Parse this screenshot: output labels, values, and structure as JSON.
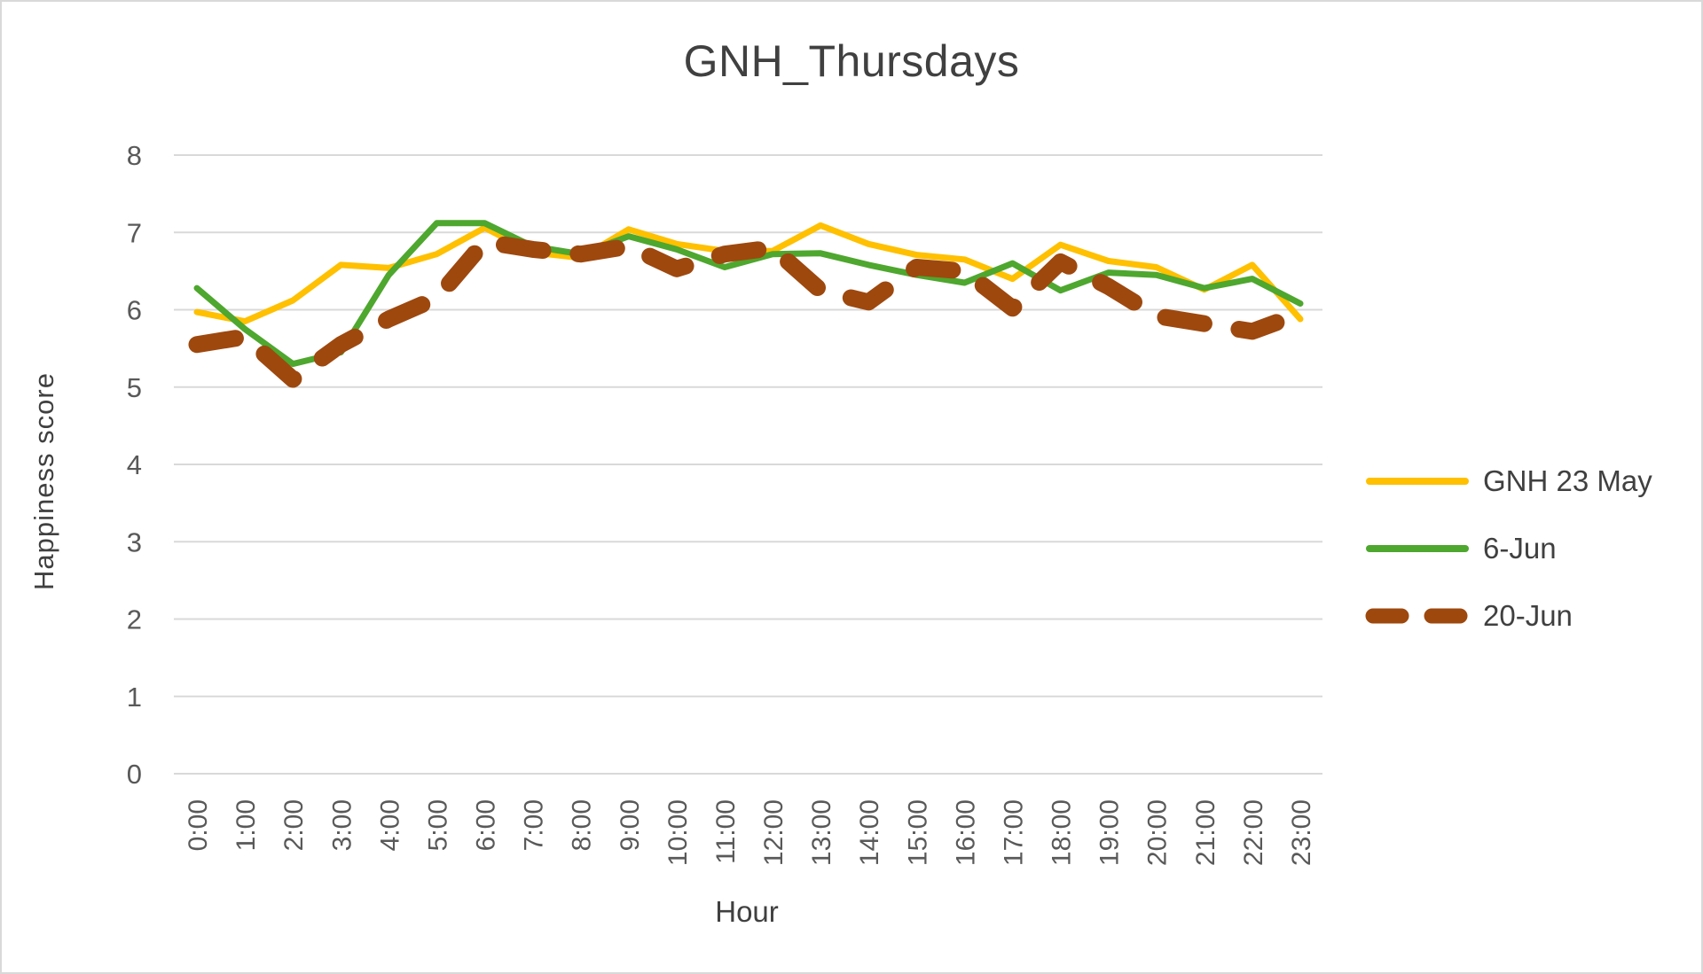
{
  "chart_data": {
    "type": "line",
    "title": "GNH_Thursdays",
    "xlabel": "Hour",
    "ylabel": "Happiness score",
    "ylim": [
      0,
      8
    ],
    "yticks": [
      0,
      1,
      2,
      3,
      4,
      5,
      6,
      7,
      8
    ],
    "grid": true,
    "legend_position": "right",
    "categories": [
      "0:00",
      "1:00",
      "2:00",
      "3:00",
      "4:00",
      "5:00",
      "6:00",
      "7:00",
      "8:00",
      "9:00",
      "10:00",
      "11:00",
      "12:00",
      "13:00",
      "14:00",
      "15:00",
      "16:00",
      "17:00",
      "18:00",
      "19:00",
      "20:00",
      "21:00",
      "22:00",
      "23:00"
    ],
    "series": [
      {
        "name": "GNH 23 May",
        "color": "#FFC000",
        "dash": "solid",
        "values": [
          5.97,
          5.85,
          6.12,
          6.58,
          6.54,
          6.72,
          7.06,
          6.74,
          6.67,
          7.04,
          6.85,
          6.76,
          6.76,
          7.09,
          6.85,
          6.71,
          6.65,
          6.4,
          6.84,
          6.63,
          6.55,
          6.26,
          6.58,
          5.88
        ]
      },
      {
        "name": "6-Jun",
        "color": "#4EA72E",
        "dash": "solid",
        "values": [
          6.28,
          5.75,
          5.3,
          5.45,
          6.45,
          7.12,
          7.12,
          6.82,
          6.72,
          6.95,
          6.78,
          6.55,
          6.72,
          6.73,
          6.58,
          6.45,
          6.35,
          6.6,
          6.25,
          6.48,
          6.45,
          6.28,
          6.4,
          6.08
        ]
      },
      {
        "name": "20-Jun",
        "color": "#9E480E",
        "dash": "dashed",
        "values": [
          5.55,
          5.65,
          5.1,
          5.55,
          5.88,
          6.15,
          6.88,
          6.78,
          6.72,
          6.82,
          6.53,
          6.72,
          6.8,
          6.25,
          6.1,
          6.55,
          6.5,
          6.02,
          6.62,
          6.3,
          5.92,
          5.82,
          5.72,
          5.95
        ]
      }
    ]
  },
  "colors": {
    "gridline": "#d9d9d9",
    "text": "#595959",
    "border": "#d9d9d9"
  }
}
